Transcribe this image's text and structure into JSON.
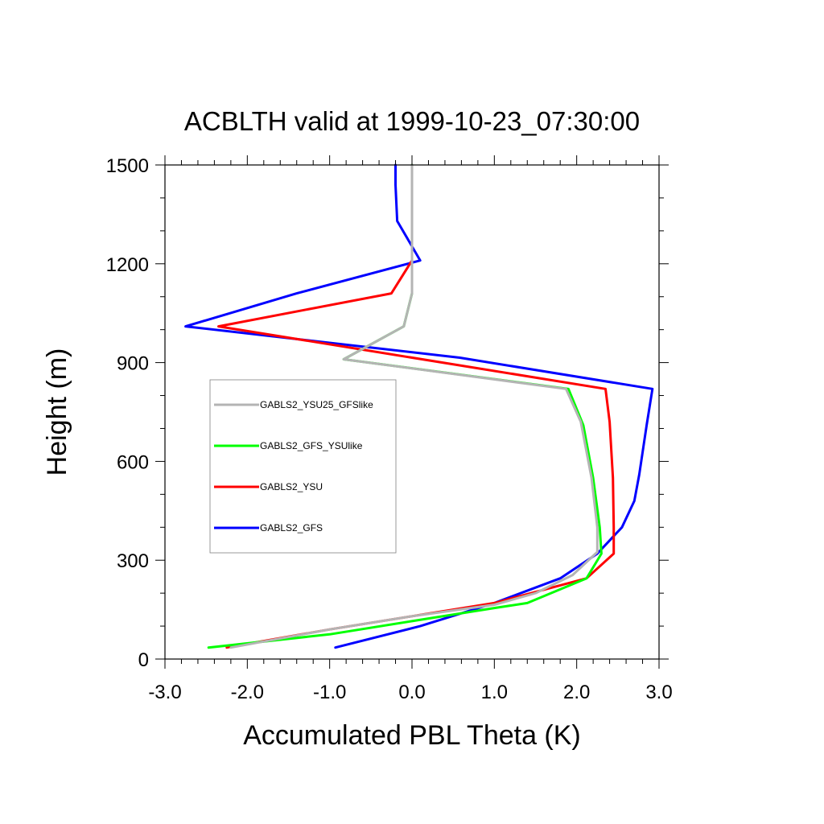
{
  "chart_data": {
    "type": "line",
    "title": "ACBLTH valid at 1999-10-23_07:30:00",
    "xlabel": "Accumulated PBL Theta (K)",
    "ylabel": "Height (m)",
    "xlim": [
      -3.0,
      3.0
    ],
    "ylim": [
      0,
      1500
    ],
    "x_ticks": [
      -3.0,
      -2.0,
      -1.0,
      0.0,
      1.0,
      2.0,
      3.0
    ],
    "x_tick_labels": [
      "-3.0",
      "-2.0",
      "-1.0",
      "0.0",
      "1.0",
      "2.0",
      "3.0"
    ],
    "y_ticks": [
      0,
      300,
      600,
      900,
      1200,
      1500
    ],
    "y_tick_labels": [
      "0",
      "300",
      "600",
      "900",
      "1200",
      "1500"
    ],
    "grid": false,
    "legend_position": "center-left",
    "series": [
      {
        "name": "GABLS2_YSU25_GFSlike",
        "color": "#b4b4b4",
        "points": [
          [
            -2.2,
            35
          ],
          [
            -1.0,
            90
          ],
          [
            0.0,
            130
          ],
          [
            1.0,
            165
          ],
          [
            1.5,
            200
          ],
          [
            1.95,
            255
          ],
          [
            2.25,
            325
          ],
          [
            2.25,
            400
          ],
          [
            2.18,
            550
          ],
          [
            2.05,
            720
          ],
          [
            1.87,
            820
          ],
          [
            -0.83,
            910
          ],
          [
            -0.1,
            1010
          ],
          [
            0.0,
            1110
          ],
          [
            0.0,
            1210
          ],
          [
            0.0,
            1500
          ]
        ]
      },
      {
        "name": "GABLS2_GFS_YSUlike",
        "color": "#00ff00",
        "points": [
          [
            -2.47,
            35
          ],
          [
            -1.0,
            75
          ],
          [
            0.0,
            115
          ],
          [
            1.0,
            155
          ],
          [
            1.4,
            170
          ],
          [
            2.12,
            245
          ],
          [
            2.3,
            320
          ],
          [
            2.28,
            400
          ],
          [
            2.2,
            550
          ],
          [
            2.08,
            710
          ],
          [
            1.9,
            820
          ],
          [
            -0.83,
            910
          ],
          [
            -0.1,
            1010
          ],
          [
            0.0,
            1110
          ],
          [
            0.0,
            1210
          ],
          [
            0.0,
            1500
          ]
        ]
      },
      {
        "name": "GABLS2_YSU",
        "color": "#ff0000",
        "points": [
          [
            -2.25,
            35
          ],
          [
            -1.0,
            90
          ],
          [
            0.0,
            130
          ],
          [
            1.0,
            170
          ],
          [
            2.12,
            245
          ],
          [
            2.45,
            320
          ],
          [
            2.45,
            400
          ],
          [
            2.44,
            550
          ],
          [
            2.4,
            720
          ],
          [
            2.35,
            820
          ],
          [
            -2.35,
            1010
          ],
          [
            -0.25,
            1110
          ],
          [
            0.0,
            1210
          ]
        ]
      },
      {
        "name": "GABLS2_GFS",
        "color": "#0000ff",
        "points": [
          [
            -0.93,
            35
          ],
          [
            0.1,
            100
          ],
          [
            1.0,
            170
          ],
          [
            1.8,
            245
          ],
          [
            2.25,
            320
          ],
          [
            2.55,
            400
          ],
          [
            2.7,
            480
          ],
          [
            2.76,
            560
          ],
          [
            2.85,
            710
          ],
          [
            2.92,
            820
          ],
          [
            0.58,
            915
          ],
          [
            -2.75,
            1010
          ],
          [
            -1.4,
            1110
          ],
          [
            0.1,
            1210
          ],
          [
            -0.18,
            1330
          ],
          [
            -0.2,
            1440
          ],
          [
            -0.2,
            1500
          ]
        ]
      }
    ]
  }
}
